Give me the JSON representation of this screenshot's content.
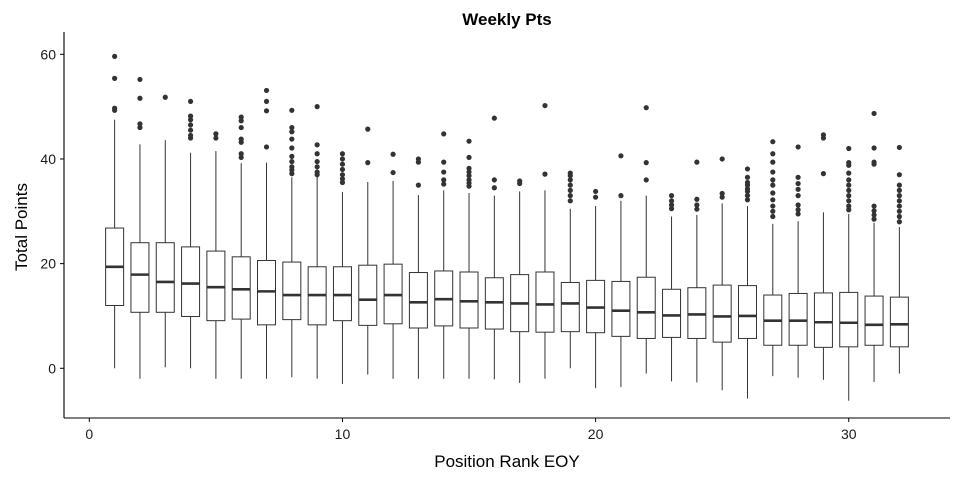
{
  "chart_data": {
    "type": "boxplot",
    "title": "Weekly Pts",
    "xlabel": "Position Rank EOY",
    "ylabel": "Total Points",
    "xlim": [
      -1,
      34
    ],
    "ylim": [
      -9.5,
      63.5
    ],
    "x_ticks": [
      0,
      10,
      20,
      30
    ],
    "y_ticks": [
      0,
      20,
      40,
      60
    ],
    "grid": false,
    "legend": "none",
    "colors": {
      "box_fill": "#ffffff",
      "line": "#333333",
      "outlier": "#333333",
      "axis": "#000000"
    },
    "boxes": [
      {
        "x": 1,
        "q1": 12.0,
        "median": 19.4,
        "q3": 26.8,
        "wlow": 0.0,
        "whigh": 47.5,
        "outliers": [
          49.3,
          49.7,
          55.4,
          59.6
        ]
      },
      {
        "x": 2,
        "q1": 10.7,
        "median": 17.9,
        "q3": 24.0,
        "wlow": -2.0,
        "whigh": 42.8,
        "outliers": [
          46.0,
          46.7,
          51.6,
          55.2
        ]
      },
      {
        "x": 3,
        "q1": 10.7,
        "median": 16.5,
        "q3": 24.0,
        "wlow": 0.2,
        "whigh": 43.6,
        "outliers": [
          51.8
        ]
      },
      {
        "x": 4,
        "q1": 9.9,
        "median": 16.2,
        "q3": 23.2,
        "wlow": 0.0,
        "whigh": 41.2,
        "outliers": [
          44.0,
          44.5,
          45.5,
          46.5,
          47.5,
          48.2,
          51.0
        ]
      },
      {
        "x": 5,
        "q1": 9.1,
        "median": 15.5,
        "q3": 22.4,
        "wlow": -2.0,
        "whigh": 41.5,
        "outliers": [
          44.0,
          44.8
        ]
      },
      {
        "x": 6,
        "q1": 9.4,
        "median": 15.1,
        "q3": 21.3,
        "wlow": -2.0,
        "whigh": 39.2,
        "outliers": [
          40.3,
          41.0,
          43.2,
          43.8,
          46.0,
          47.3,
          48.0
        ]
      },
      {
        "x": 7,
        "q1": 8.3,
        "median": 14.7,
        "q3": 20.6,
        "wlow": -2.0,
        "whigh": 39.3,
        "outliers": [
          42.3,
          49.2,
          51.0,
          53.1
        ]
      },
      {
        "x": 8,
        "q1": 9.3,
        "median": 14.0,
        "q3": 20.3,
        "wlow": -1.7,
        "whigh": 36.5,
        "outliers": [
          37.2,
          37.9,
          38.5,
          39.5,
          40.5,
          42.1,
          43.8,
          45.2,
          46.0,
          49.3
        ]
      },
      {
        "x": 9,
        "q1": 8.3,
        "median": 14.0,
        "q3": 19.4,
        "wlow": -2.0,
        "whigh": 36.6,
        "outliers": [
          37.0,
          37.5,
          38.5,
          39.5,
          41.0,
          42.7,
          50.0
        ]
      },
      {
        "x": 10,
        "q1": 9.1,
        "median": 14.0,
        "q3": 19.4,
        "wlow": -3.0,
        "whigh": 33.7,
        "outliers": [
          35.5,
          36.2,
          37.0,
          38.0,
          39.0,
          40.0,
          41.0
        ]
      },
      {
        "x": 11,
        "q1": 8.2,
        "median": 13.1,
        "q3": 19.7,
        "wlow": -1.2,
        "whigh": 35.6,
        "outliers": [
          39.3,
          45.7
        ]
      },
      {
        "x": 12,
        "q1": 8.5,
        "median": 14.0,
        "q3": 19.9,
        "wlow": -2.0,
        "whigh": 35.8,
        "outliers": [
          37.4,
          40.9
        ]
      },
      {
        "x": 13,
        "q1": 7.7,
        "median": 12.6,
        "q3": 18.3,
        "wlow": -2.0,
        "whigh": 33.1,
        "outliers": [
          35.0,
          39.4,
          40.0
        ]
      },
      {
        "x": 14,
        "q1": 8.1,
        "median": 13.2,
        "q3": 18.6,
        "wlow": -2.0,
        "whigh": 34.0,
        "outliers": [
          35.2,
          36.0,
          37.5,
          39.4,
          44.8
        ]
      },
      {
        "x": 15,
        "q1": 7.7,
        "median": 12.8,
        "q3": 18.4,
        "wlow": -2.0,
        "whigh": 33.5,
        "outliers": [
          34.8,
          35.4,
          36.0,
          36.8,
          37.5,
          38.2,
          40.3,
          43.4
        ]
      },
      {
        "x": 16,
        "q1": 7.5,
        "median": 12.6,
        "q3": 17.3,
        "wlow": -2.1,
        "whigh": 33.0,
        "outliers": [
          34.5,
          36.0,
          47.8
        ]
      },
      {
        "x": 17,
        "q1": 7.0,
        "median": 12.4,
        "q3": 17.9,
        "wlow": -2.8,
        "whigh": 33.8,
        "outliers": [
          35.3,
          35.8
        ]
      },
      {
        "x": 18,
        "q1": 6.9,
        "median": 12.2,
        "q3": 18.4,
        "wlow": -2.0,
        "whigh": 34.0,
        "outliers": [
          37.1,
          50.2
        ]
      },
      {
        "x": 19,
        "q1": 7.0,
        "median": 12.4,
        "q3": 16.4,
        "wlow": 0.0,
        "whigh": 30.5,
        "outliers": [
          32.0,
          33.0,
          34.0,
          35.0,
          36.0,
          36.8,
          37.3
        ]
      },
      {
        "x": 20,
        "q1": 6.8,
        "median": 11.6,
        "q3": 16.8,
        "wlow": -3.8,
        "whigh": 31.0,
        "outliers": [
          32.7,
          33.8
        ]
      },
      {
        "x": 21,
        "q1": 6.1,
        "median": 11.0,
        "q3": 16.6,
        "wlow": -3.6,
        "whigh": 32.0,
        "outliers": [
          33.0,
          40.6
        ]
      },
      {
        "x": 22,
        "q1": 5.7,
        "median": 10.7,
        "q3": 17.4,
        "wlow": -1.0,
        "whigh": 33.0,
        "outliers": [
          36.0,
          39.3,
          49.8
        ]
      },
      {
        "x": 23,
        "q1": 5.9,
        "median": 10.1,
        "q3": 15.1,
        "wlow": -2.5,
        "whigh": 29.0,
        "outliers": [
          30.5,
          31.2,
          32.0,
          33.0
        ]
      },
      {
        "x": 24,
        "q1": 5.7,
        "median": 10.3,
        "q3": 15.4,
        "wlow": -2.7,
        "whigh": 29.3,
        "outliers": [
          30.4,
          31.2,
          32.3,
          39.4
        ]
      },
      {
        "x": 25,
        "q1": 5.0,
        "median": 9.9,
        "q3": 15.9,
        "wlow": -4.2,
        "whigh": 31.5,
        "outliers": [
          32.7,
          33.4,
          40.0
        ]
      },
      {
        "x": 26,
        "q1": 5.7,
        "median": 10.0,
        "q3": 15.8,
        "wlow": -5.8,
        "whigh": 31.0,
        "outliers": [
          32.2,
          33.0,
          33.8,
          34.3,
          35.0,
          35.5,
          36.5,
          38.1
        ]
      },
      {
        "x": 27,
        "q1": 4.4,
        "median": 9.1,
        "q3": 14.0,
        "wlow": -1.5,
        "whigh": 27.6,
        "outliers": [
          29.0,
          30.0,
          31.0,
          32.2,
          33.5,
          35.0,
          36.0,
          37.5,
          39.4,
          41.0,
          43.3
        ]
      },
      {
        "x": 28,
        "q1": 4.4,
        "median": 9.1,
        "q3": 14.3,
        "wlow": -1.8,
        "whigh": 28.1,
        "outliers": [
          29.5,
          30.3,
          31.2,
          33.0,
          34.2,
          35.3,
          36.5,
          42.3
        ]
      },
      {
        "x": 29,
        "q1": 4.0,
        "median": 8.8,
        "q3": 14.4,
        "wlow": -2.2,
        "whigh": 29.8,
        "outliers": [
          37.2,
          44.0,
          44.6
        ]
      },
      {
        "x": 30,
        "q1": 4.1,
        "median": 8.7,
        "q3": 14.5,
        "wlow": -6.2,
        "whigh": 29.5,
        "outliers": [
          30.3,
          31.0,
          32.0,
          33.0,
          34.0,
          35.0,
          36.0,
          37.3,
          38.8,
          39.3,
          42.0
        ]
      },
      {
        "x": 31,
        "q1": 4.4,
        "median": 8.3,
        "q3": 13.8,
        "wlow": -2.6,
        "whigh": 27.8,
        "outliers": [
          28.5,
          29.3,
          30.1,
          31.0,
          39.0,
          39.4,
          42.1,
          48.7
        ]
      },
      {
        "x": 32,
        "q1": 4.1,
        "median": 8.4,
        "q3": 13.6,
        "wlow": -1.0,
        "whigh": 27.0,
        "outliers": [
          28.0,
          29.0,
          30.0,
          31.0,
          32.0,
          33.0,
          34.0,
          35.0,
          37.0,
          42.2
        ]
      }
    ]
  }
}
